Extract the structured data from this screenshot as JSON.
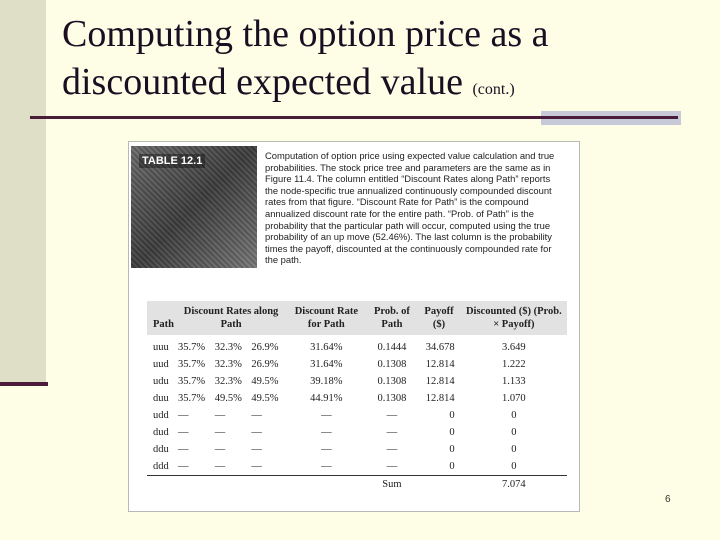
{
  "slide": {
    "title_line1": "Computing the option price as a",
    "title_line2": "discounted expected value",
    "title_suffix": "(cont.)",
    "page_number": "6"
  },
  "table": {
    "badge_label": "TABLE 12.1",
    "caption": "Computation of option price using expected value calculation and true probabilities. The stock price tree and parameters are the same as in Figure 11.4. The column entitled “Discount Rates along Path” reports the node-specific true annualized continuously compounded discount rates from that figure. “Discount Rate for Path” is the compound annualized discount rate for the entire path. “Prob. of Path” is the probability that the particular path will occur, computed using the true probability of an up move (52.46%). The last column is the probability times the payoff, discounted at the continuously compounded rate for the path.",
    "headers": {
      "path": "Path",
      "discount_rates": "Discount Rates along Path",
      "discount_rate_path": "Discount Rate for Path",
      "prob_path": "Prob. of Path",
      "payoff": "Payoff ($)",
      "discounted": "Discounted ($) (Prob. × Payoff)"
    },
    "rows": [
      {
        "path": "uuu",
        "r1": "35.7%",
        "r2": "32.3%",
        "r3": "26.9%",
        "rate": "31.64%",
        "prob": "0.1444",
        "payoff": "34.678",
        "disc": "3.649"
      },
      {
        "path": "uud",
        "r1": "35.7%",
        "r2": "32.3%",
        "r3": "26.9%",
        "rate": "31.64%",
        "prob": "0.1308",
        "payoff": "12.814",
        "disc": "1.222"
      },
      {
        "path": "udu",
        "r1": "35.7%",
        "r2": "32.3%",
        "r3": "49.5%",
        "rate": "39.18%",
        "prob": "0.1308",
        "payoff": "12.814",
        "disc": "1.133"
      },
      {
        "path": "duu",
        "r1": "35.7%",
        "r2": "49.5%",
        "r3": "49.5%",
        "rate": "44.91%",
        "prob": "0.1308",
        "payoff": "12.814",
        "disc": "1.070"
      },
      {
        "path": "udd",
        "r1": "—",
        "r2": "—",
        "r3": "—",
        "rate": "—",
        "prob": "—",
        "payoff": "0",
        "disc": "0"
      },
      {
        "path": "dud",
        "r1": "—",
        "r2": "—",
        "r3": "—",
        "rate": "—",
        "prob": "—",
        "payoff": "0",
        "disc": "0"
      },
      {
        "path": "ddu",
        "r1": "—",
        "r2": "—",
        "r3": "—",
        "rate": "—",
        "prob": "—",
        "payoff": "0",
        "disc": "0"
      },
      {
        "path": "ddd",
        "r1": "—",
        "r2": "—",
        "r3": "—",
        "rate": "—",
        "prob": "—",
        "payoff": "0",
        "disc": "0"
      }
    ],
    "sum_label": "Sum",
    "sum_value": "7.074"
  }
}
